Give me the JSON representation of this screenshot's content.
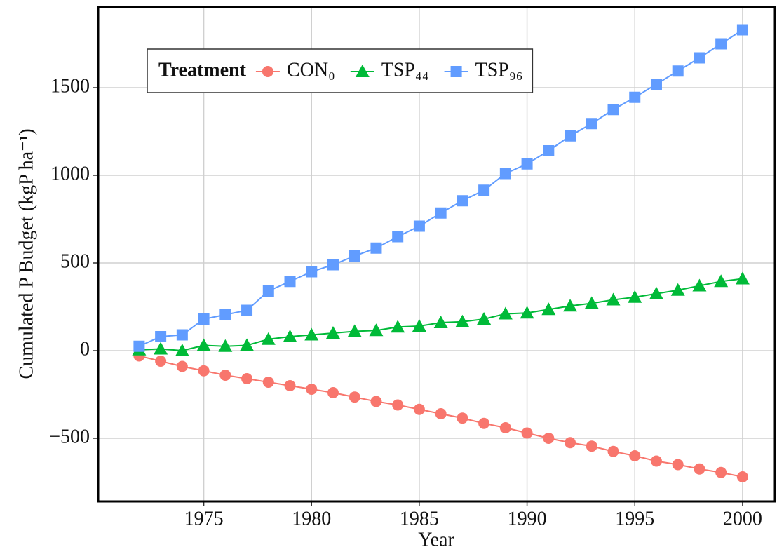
{
  "chart_data": {
    "type": "line",
    "x_label": "Year",
    "y_label": "Cumulated P Budget (kgP ha⁻¹)",
    "legend_title": "Treatment",
    "legend_position": "top-left",
    "grid": true,
    "x": [
      1972,
      1973,
      1974,
      1975,
      1976,
      1977,
      1978,
      1979,
      1980,
      1981,
      1982,
      1983,
      1984,
      1985,
      1986,
      1987,
      1988,
      1989,
      1990,
      1991,
      1992,
      1993,
      1994,
      1995,
      1996,
      1997,
      1998,
      1999,
      2000
    ],
    "series": [
      {
        "name": "CON₀",
        "color": "#F8766D",
        "marker": "circle",
        "values": [
          -30,
          -60,
          -90,
          -115,
          -140,
          -160,
          -180,
          -200,
          -220,
          -240,
          -265,
          -290,
          -310,
          -335,
          -360,
          -385,
          -415,
          -440,
          -470,
          -500,
          -525,
          -545,
          -575,
          -600,
          -630,
          -650,
          -675,
          -695,
          -720
        ]
      },
      {
        "name": "TSP₄₄",
        "color": "#00BA38",
        "marker": "triangle",
        "values": [
          5,
          10,
          0,
          30,
          25,
          30,
          65,
          80,
          90,
          100,
          110,
          115,
          135,
          140,
          160,
          165,
          180,
          210,
          215,
          235,
          255,
          270,
          290,
          305,
          325,
          345,
          370,
          395,
          410
        ]
      },
      {
        "name": "TSP₉₆",
        "color": "#619CFF",
        "marker": "square",
        "values": [
          25,
          80,
          90,
          180,
          205,
          230,
          340,
          395,
          450,
          490,
          540,
          585,
          650,
          710,
          785,
          855,
          915,
          1010,
          1065,
          1140,
          1225,
          1295,
          1375,
          1445,
          1520,
          1595,
          1670,
          1750,
          1830
        ]
      }
    ],
    "xlim": [
      1970.1,
      2001.5
    ],
    "xticks": [
      1975,
      1980,
      1985,
      1990,
      1995,
      2000
    ],
    "ylim": [
      -860,
      1960
    ],
    "yticks": [
      {
        "value": -500,
        "label": "−500"
      },
      0,
      500,
      1000,
      1500
    ]
  }
}
